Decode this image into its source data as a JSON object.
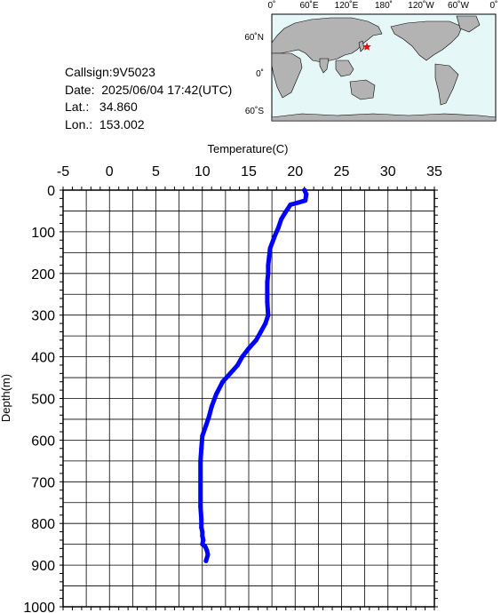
{
  "station": {
    "callsign_label": "Callsign:",
    "callsign": "9V5023",
    "date_label": "Date:",
    "date": "2025/06/04 17:42(UTC)",
    "lat_label": "Lat.:",
    "lat": "34.860",
    "lon_label": "Lon.:",
    "lon": "153.002"
  },
  "map": {
    "lon_ticks": [
      "0˚",
      "60˚E",
      "120˚E",
      "180˚",
      "120˚W",
      "60˚W",
      "0˚"
    ],
    "lat_ticks": [
      "60˚N",
      "0˚",
      "60˚S"
    ],
    "land_color": "#b3b3b3",
    "ocean_color": "#e6f7f7",
    "marker_color": "#ff0000",
    "marker_lat": 34.86,
    "marker_lon": 153.002
  },
  "chart_data": {
    "type": "line",
    "title": "",
    "xlabel": "Temperature(C)",
    "ylabel": "Depth(m)",
    "xlim": [
      -5,
      35
    ],
    "ylim": [
      0,
      1000
    ],
    "y_inverted": true,
    "x_axis_position": "top",
    "x_ticks": [
      "-5",
      "0",
      "5",
      "10",
      "15",
      "20",
      "25",
      "30",
      "35"
    ],
    "y_ticks": [
      "0",
      "100",
      "200",
      "300",
      "400",
      "500",
      "600",
      "700",
      "800",
      "900",
      "1000"
    ],
    "grid": true,
    "series_color": "#0000ff",
    "series": [
      {
        "x": [
          21.0,
          21.2,
          21.1,
          20.3,
          19.5,
          19.2,
          18.9,
          18.5,
          18.2,
          17.8,
          17.3,
          17.2,
          17.1,
          17.1,
          17.0,
          17.0,
          17.0,
          17.1,
          16.8,
          16.3,
          15.8,
          15.0,
          14.3,
          13.8,
          13.0,
          12.2,
          11.5,
          11.0,
          10.7,
          10.4,
          10.0,
          9.9,
          9.8,
          9.8,
          9.8,
          9.9,
          9.9,
          10.0,
          10.0,
          10.1,
          10.0,
          10.3,
          10.5,
          10.6,
          10.4
        ],
        "y": [
          0,
          10,
          25,
          30,
          35,
          45,
          55,
          70,
          90,
          110,
          140,
          160,
          180,
          200,
          220,
          250,
          270,
          300,
          320,
          340,
          360,
          380,
          400,
          420,
          440,
          460,
          490,
          520,
          545,
          565,
          590,
          620,
          650,
          700,
          760,
          790,
          810,
          820,
          830,
          840,
          850,
          855,
          865,
          875,
          890
        ]
      }
    ]
  }
}
